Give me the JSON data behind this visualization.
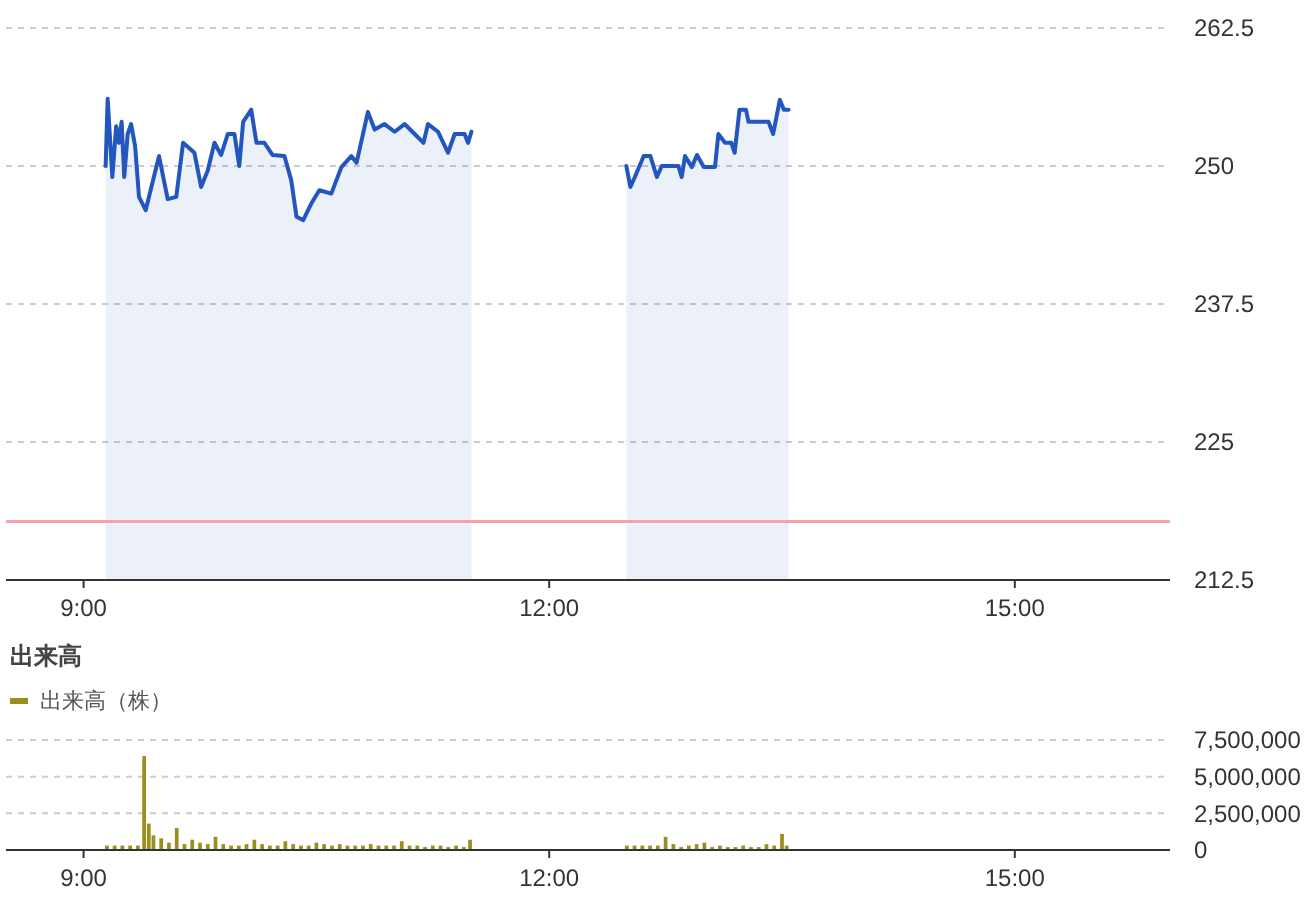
{
  "chart_data": [
    {
      "type": "area",
      "xlim": [
        8.5,
        16
      ],
      "xticks": [
        {
          "value": 9,
          "label": "9:00"
        },
        {
          "value": 12,
          "label": "12:00"
        },
        {
          "value": 15,
          "label": "15:00"
        }
      ],
      "ylim": [
        212.5,
        262.5
      ],
      "yticks": [
        212.5,
        225,
        237.5,
        250,
        262.5
      ],
      "grid": "y",
      "ref_lines": [
        {
          "axis": "y",
          "value": 217.8,
          "color": "#f4a3ae"
        }
      ],
      "series": [
        {
          "color": "#2456c0",
          "x": [
            9.142,
            9.155,
            9.185,
            9.21,
            9.228,
            9.245,
            9.262,
            9.284,
            9.306,
            9.332,
            9.357,
            9.4,
            9.486,
            9.542,
            9.597,
            9.641,
            9.714,
            9.757,
            9.8,
            9.843,
            9.886,
            9.929,
            9.972,
            10.003,
            10.028,
            10.08,
            10.114,
            10.165,
            10.217,
            10.294,
            10.338,
            10.372,
            10.415,
            10.467,
            10.519,
            10.596,
            10.661,
            10.725,
            10.759,
            10.832,
            10.875,
            10.939,
            11.004,
            11.068,
            11.133,
            11.19,
            11.219,
            11.284,
            11.348,
            11.391,
            11.455,
            11.477,
            11.499,
            12,
            12.497,
            12.523,
            12.552,
            12.609,
            12.652,
            12.694,
            12.725,
            12.832,
            12.854,
            12.875,
            12.919,
            12.952,
            12.996,
            13.068,
            13.09,
            13.133,
            13.174,
            13.195,
            13.226,
            13.268,
            13.284,
            13.413,
            13.443,
            13.486,
            13.512,
            13.542
          ],
          "values": [
            250,
            256.1,
            249,
            253.6,
            252.1,
            254,
            249,
            252.9,
            253.8,
            251.8,
            247.2,
            246,
            250.9,
            247,
            247.2,
            252.1,
            251.2,
            248.1,
            249.6,
            252.1,
            251,
            252.9,
            252.9,
            250,
            254,
            255.1,
            252.1,
            252.1,
            251,
            250.9,
            248.7,
            245.4,
            245.1,
            246.6,
            247.8,
            247.5,
            249.9,
            250.9,
            250.3,
            254.9,
            253.3,
            253.8,
            253.1,
            253.8,
            252.9,
            252.1,
            253.8,
            253.1,
            251.2,
            252.9,
            252.9,
            252.1,
            253.1,
            null,
            250,
            248.1,
            249,
            250.9,
            250.9,
            249,
            250,
            250,
            249,
            250.9,
            249.9,
            251,
            249.9,
            249.9,
            252.9,
            252.1,
            252.1,
            251.2,
            255.1,
            255.1,
            254,
            254,
            252.9,
            256,
            255.1,
            255.1
          ]
        }
      ]
    },
    {
      "type": "bar",
      "title": "出来高",
      "legend": "top left",
      "xlim": [
        8.5,
        16
      ],
      "xticks": [
        {
          "value": 9,
          "label": "9:00"
        },
        {
          "value": 12,
          "label": "12:00"
        },
        {
          "value": 15,
          "label": "15:00"
        }
      ],
      "ylim": [
        0,
        7500000
      ],
      "yticks": [
        {
          "value": 0,
          "label": "0"
        },
        {
          "value": 2500000,
          "label": "2,500,000"
        },
        {
          "value": 5000000,
          "label": "5,000,000"
        },
        {
          "value": 7500000,
          "label": "7,500,000"
        }
      ],
      "grid": "y",
      "series": [
        {
          "name": "出来高（株）",
          "color": "#9a8f1c",
          "x": [
            9.15,
            9.2,
            9.25,
            9.3,
            9.35,
            9.39,
            9.42,
            9.45,
            9.5,
            9.55,
            9.6,
            9.65,
            9.7,
            9.75,
            9.8,
            9.85,
            9.9,
            9.95,
            10,
            10.05,
            10.1,
            10.15,
            10.2,
            10.25,
            10.3,
            10.35,
            10.4,
            10.45,
            10.5,
            10.55,
            10.6,
            10.65,
            10.7,
            10.75,
            10.8,
            10.85,
            10.9,
            10.95,
            11,
            11.05,
            11.1,
            11.15,
            11.2,
            11.25,
            11.3,
            11.35,
            11.4,
            11.45,
            11.49,
            12.5,
            12.55,
            12.6,
            12.65,
            12.7,
            12.75,
            12.8,
            12.85,
            12.9,
            12.95,
            13,
            13.05,
            13.1,
            13.15,
            13.2,
            13.25,
            13.3,
            13.35,
            13.4,
            13.45,
            13.5,
            13.53
          ],
          "values": [
            300000,
            300000,
            300000,
            300000,
            300000,
            6400000,
            1800000,
            1000000,
            800000,
            500000,
            1500000,
            400000,
            700000,
            500000,
            400000,
            900000,
            400000,
            300000,
            300000,
            400000,
            700000,
            400000,
            300000,
            300000,
            600000,
            400000,
            300000,
            300000,
            500000,
            400000,
            300000,
            400000,
            300000,
            300000,
            300000,
            400000,
            300000,
            300000,
            300000,
            600000,
            300000,
            300000,
            200000,
            300000,
            300000,
            200000,
            300000,
            200000,
            700000,
            300000,
            300000,
            300000,
            300000,
            300000,
            900000,
            400000,
            200000,
            300000,
            400000,
            500000,
            200000,
            300000,
            200000,
            200000,
            300000,
            200000,
            200000,
            400000,
            300000,
            1100000,
            300000
          ]
        }
      ]
    }
  ]
}
